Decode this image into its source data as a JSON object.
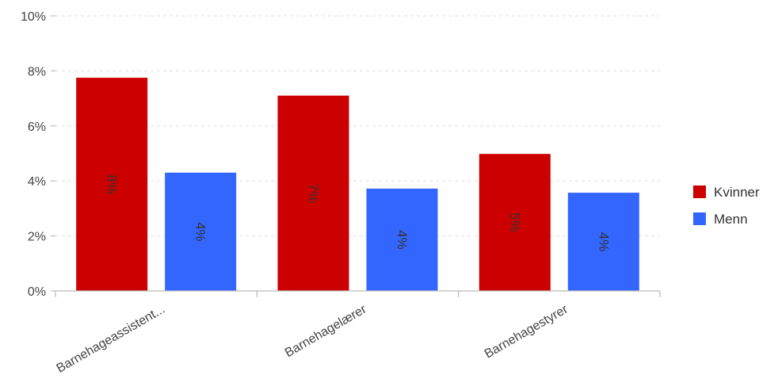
{
  "chart_data": {
    "type": "bar",
    "categories": [
      "Barnehageassistent...",
      "Barnehagelærer",
      "Barnehagestyrer"
    ],
    "series": [
      {
        "name": "Kvinner",
        "color": "#cc0000",
        "values": [
          7.75,
          7.1,
          4.98
        ],
        "labels": [
          "8%",
          "7%",
          "5%"
        ]
      },
      {
        "name": "Menn",
        "color": "#3366ff",
        "values": [
          4.3,
          3.72,
          3.57
        ],
        "labels": [
          "4%",
          "4%",
          "4%"
        ]
      }
    ],
    "yticks": [
      "0%",
      "2%",
      "4%",
      "6%",
      "8%",
      "10%"
    ],
    "ylim": [
      0,
      10
    ],
    "grid": true,
    "legend": "right"
  }
}
